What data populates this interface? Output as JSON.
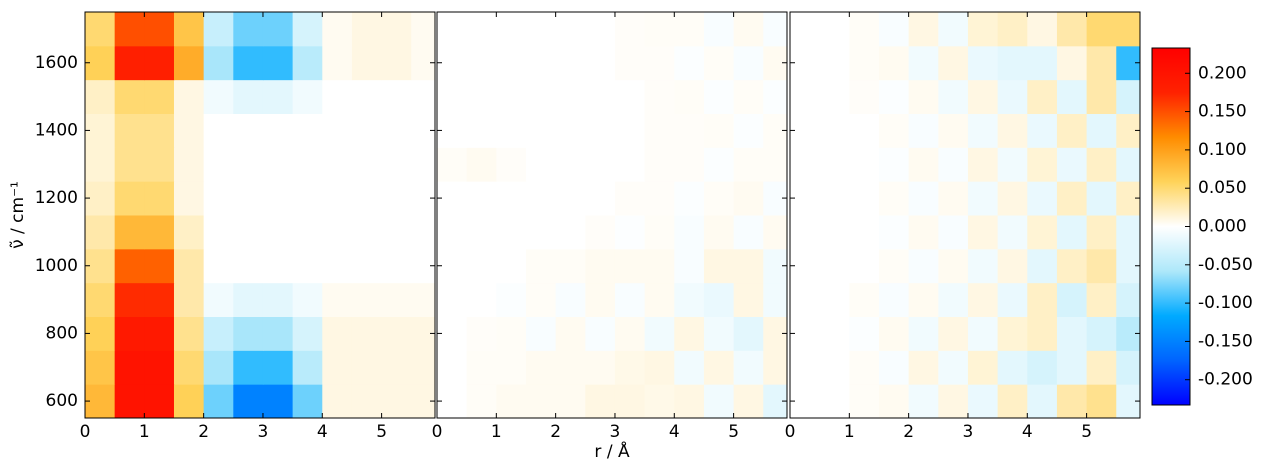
{
  "chart_data": [
    {
      "type": "heatmap",
      "ylabel": "ν̃ / cm⁻¹",
      "x_edges": [
        0,
        0.5,
        1,
        1.5,
        2,
        2.5,
        3,
        3.5,
        4,
        4.5,
        5,
        5.5,
        5.9
      ],
      "y_edges": [
        550,
        650,
        750,
        850,
        950,
        1050,
        1150,
        1250,
        1350,
        1450,
        1550,
        1650,
        1750
      ],
      "values": [
        [
          0.08,
          0.2,
          0.2,
          0.06,
          -0.08,
          -0.15,
          -0.15,
          -0.08,
          0.01,
          0.01,
          0.01,
          0.01
        ],
        [
          0.07,
          0.2,
          0.2,
          0.05,
          -0.06,
          -0.1,
          -0.1,
          -0.05,
          0.01,
          0.01,
          0.01,
          0.01
        ],
        [
          0.06,
          0.19,
          0.19,
          0.04,
          -0.04,
          -0.06,
          -0.06,
          -0.03,
          0.01,
          0.01,
          0.01,
          0.01
        ],
        [
          0.05,
          0.17,
          0.17,
          0.03,
          -0.01,
          -0.02,
          -0.02,
          -0.01,
          0.005,
          0.005,
          0.005,
          0.005
        ],
        [
          0.04,
          0.14,
          0.14,
          0.03,
          0,
          0,
          0,
          0,
          0,
          0,
          0,
          0
        ],
        [
          0.03,
          0.08,
          0.08,
          0.02,
          0,
          0,
          0,
          0,
          0,
          0,
          0,
          0
        ],
        [
          0.02,
          0.05,
          0.05,
          0.01,
          0,
          0,
          0,
          0,
          0,
          0,
          0,
          0
        ],
        [
          0.015,
          0.04,
          0.04,
          0.01,
          0,
          0,
          0,
          0,
          0,
          0,
          0,
          0
        ],
        [
          0.015,
          0.04,
          0.04,
          0.01,
          0,
          0,
          0,
          0,
          0,
          0,
          0,
          0
        ],
        [
          0.02,
          0.05,
          0.05,
          0.01,
          -0.01,
          -0.02,
          -0.02,
          -0.01,
          0,
          0,
          0,
          0
        ],
        [
          0.06,
          0.18,
          0.18,
          0.09,
          -0.06,
          -0.1,
          -0.1,
          -0.05,
          0.005,
          0.01,
          0.01,
          0.005
        ],
        [
          0.05,
          0.15,
          0.15,
          0.07,
          -0.04,
          -0.08,
          -0.08,
          -0.03,
          0.005,
          0.01,
          0.01,
          0.005
        ]
      ],
      "xlim": [
        0,
        5.9
      ],
      "ylim": [
        550,
        1750
      ],
      "xticks": [
        0,
        1,
        2,
        3,
        4,
        5
      ],
      "yticks": [
        600,
        800,
        1000,
        1200,
        1400,
        1600
      ]
    },
    {
      "type": "heatmap",
      "xlabel": "r / Å",
      "x_edges": [
        0,
        0.5,
        1,
        1.5,
        2,
        2.5,
        3,
        3.5,
        4,
        4.5,
        5,
        5.5,
        5.9
      ],
      "y_edges": [
        550,
        650,
        750,
        850,
        950,
        1050,
        1150,
        1250,
        1350,
        1450,
        1550,
        1650,
        1750
      ],
      "values": [
        [
          0,
          0.003,
          0.005,
          0.005,
          0.005,
          0.01,
          0.01,
          0.008,
          0.01,
          -0.01,
          0.01,
          -0.02
        ],
        [
          0,
          0.003,
          0.003,
          0.005,
          0.005,
          0.005,
          0.008,
          0.01,
          -0.01,
          0.01,
          -0.01,
          0.01
        ],
        [
          0,
          0.002,
          0.003,
          -0.005,
          0.005,
          -0.005,
          0.005,
          -0.01,
          0.01,
          -0.01,
          -0.02,
          0.01
        ],
        [
          0,
          0,
          -0.003,
          0.003,
          -0.005,
          0.005,
          -0.005,
          0.005,
          -0.01,
          -0.015,
          0.01,
          -0.01
        ],
        [
          0,
          0,
          0,
          0.003,
          0.003,
          0.005,
          0.005,
          0.005,
          -0.005,
          0.01,
          0.01,
          -0.01
        ],
        [
          0,
          0,
          0,
          0,
          0,
          0.002,
          -0.002,
          0.003,
          -0.005,
          0.005,
          -0.005,
          0.005
        ],
        [
          0,
          0,
          0,
          0,
          0,
          0,
          0.002,
          0.002,
          -0.003,
          0.003,
          0.005,
          -0.005
        ],
        [
          0.003,
          0.005,
          0.002,
          0,
          0,
          0,
          0,
          0.002,
          0.002,
          -0.003,
          0.003,
          0.003
        ],
        [
          0,
          0,
          0,
          0,
          0,
          0,
          0,
          0.002,
          0.002,
          0.003,
          -0.003,
          0.003
        ],
        [
          0,
          0,
          0,
          0,
          0,
          0,
          0,
          0.002,
          0.003,
          -0.003,
          0.003,
          -0.003
        ],
        [
          0,
          0,
          0,
          0,
          0,
          0,
          0.002,
          0.002,
          -0.003,
          0.003,
          -0.005,
          0.005
        ],
        [
          0,
          0,
          0,
          0,
          0,
          0,
          0.002,
          0.003,
          0.003,
          -0.005,
          0.005,
          -0.005
        ]
      ],
      "xlim": [
        0,
        5.9
      ],
      "ylim": [
        550,
        1750
      ],
      "xticks": [
        0,
        1,
        2,
        3,
        4,
        5
      ],
      "yticks": [
        600,
        800,
        1000,
        1200,
        1400,
        1600
      ]
    },
    {
      "type": "heatmap",
      "x_edges": [
        0,
        0.5,
        1,
        1.5,
        2,
        2.5,
        3,
        3.5,
        4,
        4.5,
        5,
        5.5,
        5.9
      ],
      "y_edges": [
        550,
        650,
        750,
        850,
        950,
        1050,
        1150,
        1250,
        1350,
        1450,
        1550,
        1650,
        1750
      ],
      "values": [
        [
          0,
          0,
          0.003,
          0.005,
          -0.01,
          0.01,
          -0.015,
          0.02,
          -0.02,
          0.03,
          0.04,
          -0.02
        ],
        [
          0,
          0,
          0.003,
          -0.005,
          0.01,
          -0.01,
          0.015,
          -0.02,
          -0.03,
          -0.02,
          0.02,
          -0.03
        ],
        [
          0,
          0,
          -0.003,
          0.005,
          -0.01,
          0.01,
          -0.01,
          0.015,
          0.02,
          -0.02,
          -0.03,
          -0.05
        ],
        [
          0,
          0,
          0.003,
          -0.005,
          0.005,
          -0.01,
          0.01,
          -0.015,
          0.02,
          -0.03,
          0.02,
          -0.03
        ],
        [
          0,
          0,
          0,
          0.003,
          -0.005,
          0.005,
          -0.01,
          0.01,
          -0.02,
          0.02,
          0.03,
          -0.02
        ],
        [
          0,
          0,
          0,
          -0.003,
          0.005,
          -0.005,
          0.01,
          -0.01,
          0.015,
          -0.02,
          0.02,
          -0.02
        ],
        [
          0,
          0,
          0,
          0.003,
          -0.005,
          0.005,
          -0.01,
          0.01,
          -0.015,
          0.02,
          -0.02,
          0.02
        ],
        [
          0,
          0,
          0,
          -0.003,
          0.005,
          -0.005,
          0.01,
          -0.01,
          0.015,
          -0.015,
          0.02,
          -0.02
        ],
        [
          0,
          0,
          0,
          0.003,
          -0.005,
          0.005,
          -0.01,
          0.01,
          -0.015,
          0.02,
          -0.02,
          0.02
        ],
        [
          0,
          0,
          0.002,
          -0.003,
          0.005,
          -0.01,
          0.01,
          -0.015,
          0.02,
          -0.02,
          0.03,
          -0.03
        ],
        [
          0,
          0,
          0.003,
          0.005,
          -0.01,
          0.01,
          -0.015,
          -0.02,
          -0.02,
          0.01,
          0.03,
          -0.1
        ],
        [
          0,
          0,
          0.003,
          -0.005,
          0.01,
          -0.01,
          0.015,
          0.02,
          0.01,
          0.03,
          0.05,
          0.05
        ]
      ],
      "xlim": [
        0,
        5.9
      ],
      "ylim": [
        550,
        1750
      ],
      "xticks": [
        0,
        1,
        2,
        3,
        4,
        5
      ],
      "yticks": [
        600,
        800,
        1000,
        1200,
        1400,
        1600
      ]
    }
  ],
  "colorbar": {
    "clim": [
      -0.233,
      0.233
    ],
    "colormap": [
      "#0000ff",
      "#0064ff",
      "#00aaff",
      "#aee8fa",
      "#ffffff",
      "#ffd35a",
      "#ff8c00",
      "#ff2200",
      "#ff0000"
    ],
    "ticks": [
      {
        "value": 0.2,
        "label": "0.200"
      },
      {
        "value": 0.15,
        "label": "0.150"
      },
      {
        "value": 0.1,
        "label": "0.100"
      },
      {
        "value": 0.05,
        "label": "0.050"
      },
      {
        "value": 0,
        "label": "0.000"
      },
      {
        "value": -0.05,
        "label": "-0.050"
      },
      {
        "value": -0.1,
        "label": "-0.100"
      },
      {
        "value": -0.15,
        "label": "-0.150"
      },
      {
        "value": -0.2,
        "label": "-0.200"
      }
    ]
  }
}
